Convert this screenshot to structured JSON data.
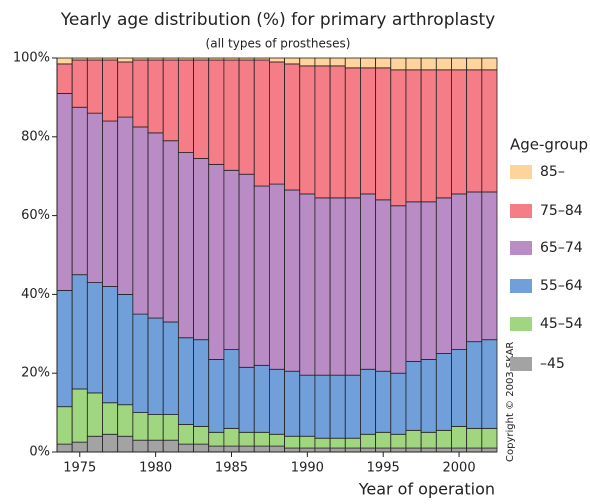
{
  "chart_data": {
    "type": "stacked_bar",
    "title": "Yearly age distribution (%) for primary arthroplasty",
    "subtitle": "(all types of prostheses)",
    "x_label": "Year of operation",
    "legend_title": "Age-group",
    "copyright": "Copyright © 2003 SKAR",
    "categories": [
      null,
      "1975",
      null,
      null,
      null,
      null,
      "1980",
      null,
      null,
      null,
      null,
      "1985",
      null,
      null,
      null,
      null,
      "1990",
      null,
      null,
      null,
      null,
      "1995",
      null,
      null,
      null,
      null,
      "2000",
      null,
      null
    ],
    "series": [
      {
        "name": "–45",
        "color": "#a3a3a3",
        "values": [
          2,
          2.5,
          4,
          4.5,
          4,
          3,
          3,
          3,
          2,
          2,
          1.5,
          1.5,
          1.5,
          1.5,
          1.5,
          1,
          1,
          1,
          1,
          1,
          1,
          1,
          1,
          1,
          1,
          1,
          1,
          1,
          1
        ]
      },
      {
        "name": "45–54",
        "color": "#9fd67f",
        "values": [
          9.5,
          13.5,
          11,
          8,
          8,
          7,
          6.5,
          6.5,
          5,
          4.5,
          3.5,
          4.5,
          3.5,
          3.5,
          3,
          3,
          3,
          2.5,
          2.5,
          2.5,
          3.5,
          4,
          3.5,
          4.5,
          4,
          4.5,
          5.5,
          5,
          5
        ]
      },
      {
        "name": "55–64",
        "color": "#719fd9",
        "values": [
          29.5,
          29,
          28,
          29.5,
          28,
          25,
          24.5,
          23.5,
          22,
          22,
          18.5,
          20,
          16.5,
          17,
          16.5,
          16.5,
          15.5,
          16,
          16,
          16,
          16.5,
          15.5,
          15.5,
          17.5,
          18.5,
          19.5,
          19.5,
          22,
          22.5
        ]
      },
      {
        "name": "65–74",
        "color": "#b98cc6",
        "values": [
          50,
          42.5,
          43,
          42,
          45,
          47.5,
          47,
          46,
          47,
          46,
          49.5,
          45.5,
          49,
          45.5,
          47,
          46,
          46,
          45,
          45,
          45,
          44.5,
          43.5,
          42.5,
          40.5,
          40,
          39.5,
          39.5,
          38,
          37.5
        ]
      },
      {
        "name": "75–84",
        "color": "#f47d87",
        "values": [
          7.5,
          12,
          13.5,
          15.5,
          14,
          17,
          18.5,
          20.5,
          23.5,
          25,
          26.5,
          28,
          29,
          32,
          31,
          32,
          32.5,
          33.5,
          33.5,
          33,
          32,
          33.5,
          34.5,
          33.5,
          33.5,
          32.5,
          31.5,
          31,
          31
        ]
      },
      {
        "name": "85–",
        "color": "#fdd49b",
        "values": [
          1.5,
          0.5,
          0.5,
          0.5,
          1,
          0.5,
          0.5,
          0.5,
          0.5,
          0.5,
          0.5,
          0.5,
          0.5,
          0.5,
          1,
          1.5,
          2,
          2,
          2,
          2.5,
          2.5,
          2.5,
          3,
          3,
          3,
          3,
          3,
          3,
          3
        ]
      }
    ],
    "ylim": [
      0,
      100
    ],
    "yticks": [
      {
        "value": 0,
        "label": "0%"
      },
      {
        "value": 20,
        "label": "20%"
      },
      {
        "value": 40,
        "label": "40%"
      },
      {
        "value": 60,
        "label": "60%"
      },
      {
        "value": 80,
        "label": "80%"
      },
      {
        "value": 100,
        "label": "100%"
      }
    ]
  }
}
